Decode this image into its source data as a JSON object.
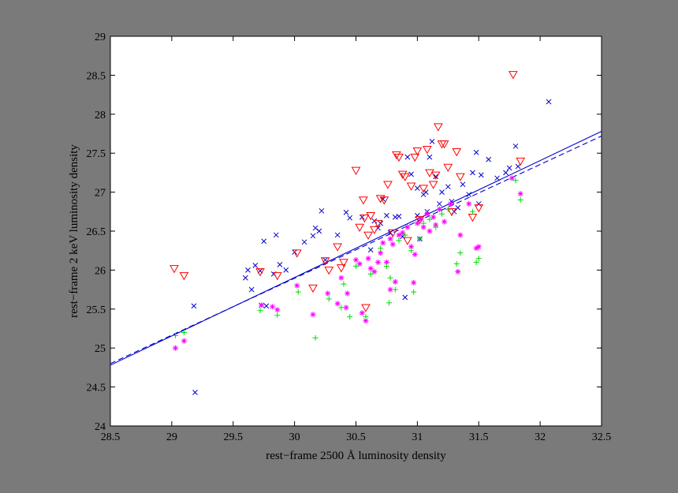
{
  "colors": {
    "background": "#7a7a7a",
    "plot_area": "#ffffff",
    "fit_solid": "#0000cc",
    "fit_dashed": "#0000cc",
    "series_x": "#0000cc",
    "series_triangle": "#ff0000",
    "series_star": "#ff00ff",
    "series_plus": "#00dd00"
  },
  "chart_data": {
    "type": "scatter",
    "title": "",
    "xlabel": "rest−frame 2500 Å luminosity density",
    "ylabel": "rest−frame 2 keV luminosity density",
    "xlim": [
      28.5,
      32.5
    ],
    "ylim": [
      24,
      29
    ],
    "xticks": [
      28.5,
      29,
      29.5,
      30,
      30.5,
      31,
      31.5,
      32,
      32.5
    ],
    "xtick_labels": [
      "28.5",
      "29",
      "29.5",
      "30",
      "30.5",
      "31",
      "31.5",
      "32",
      "32.5"
    ],
    "yticks": [
      24,
      24.5,
      25,
      25.5,
      26,
      26.5,
      27,
      27.5,
      28,
      28.5,
      29
    ],
    "ytick_labels": [
      "24",
      "24.5",
      "25",
      "25.5",
      "26",
      "26.5",
      "27",
      "27.5",
      "28",
      "28.5",
      "29"
    ],
    "grid": false,
    "legend": "none",
    "lines": [
      {
        "style": "solid",
        "points": [
          [
            28.5,
            24.78
          ],
          [
            32.5,
            27.78
          ]
        ]
      },
      {
        "style": "dashed",
        "points": [
          [
            28.5,
            24.8
          ],
          [
            32.5,
            27.72
          ]
        ]
      }
    ],
    "series": [
      {
        "marker": "x",
        "points": [
          [
            29.18,
            25.54
          ],
          [
            29.19,
            24.43
          ],
          [
            29.6,
            25.9
          ],
          [
            29.62,
            26.0
          ],
          [
            29.65,
            25.75
          ],
          [
            29.68,
            26.06
          ],
          [
            29.72,
            25.99
          ],
          [
            29.73,
            25.55
          ],
          [
            29.75,
            26.37
          ],
          [
            29.77,
            25.54
          ],
          [
            29.83,
            25.95
          ],
          [
            29.85,
            26.45
          ],
          [
            29.88,
            26.07
          ],
          [
            29.93,
            26.0
          ],
          [
            30.0,
            26.23
          ],
          [
            30.08,
            26.36
          ],
          [
            30.15,
            26.44
          ],
          [
            30.17,
            26.54
          ],
          [
            30.2,
            26.5
          ],
          [
            30.22,
            26.76
          ],
          [
            30.25,
            26.13
          ],
          [
            30.35,
            26.45
          ],
          [
            30.42,
            26.74
          ],
          [
            30.45,
            26.67
          ],
          [
            30.55,
            26.68
          ],
          [
            30.62,
            26.26
          ],
          [
            30.65,
            26.63
          ],
          [
            30.68,
            26.54
          ],
          [
            30.7,
            26.6
          ],
          [
            30.72,
            26.91
          ],
          [
            30.75,
            26.7
          ],
          [
            30.78,
            26.48
          ],
          [
            30.82,
            26.68
          ],
          [
            30.85,
            26.69
          ],
          [
            30.88,
            26.43
          ],
          [
            30.9,
            25.65
          ],
          [
            30.92,
            27.45
          ],
          [
            30.95,
            27.23
          ],
          [
            31.0,
            27.05
          ],
          [
            31.0,
            26.7
          ],
          [
            31.02,
            26.4
          ],
          [
            31.05,
            26.97
          ],
          [
            31.07,
            27.0
          ],
          [
            31.08,
            26.75
          ],
          [
            31.1,
            27.45
          ],
          [
            31.12,
            27.65
          ],
          [
            31.15,
            27.2
          ],
          [
            31.18,
            26.85
          ],
          [
            31.2,
            27.0
          ],
          [
            31.25,
            27.07
          ],
          [
            31.28,
            26.88
          ],
          [
            31.3,
            26.75
          ],
          [
            31.33,
            26.8
          ],
          [
            31.37,
            27.1
          ],
          [
            31.42,
            26.97
          ],
          [
            31.45,
            27.25
          ],
          [
            31.48,
            27.51
          ],
          [
            31.5,
            26.85
          ],
          [
            31.52,
            27.22
          ],
          [
            31.58,
            27.42
          ],
          [
            31.65,
            27.18
          ],
          [
            31.72,
            27.25
          ],
          [
            31.75,
            27.31
          ],
          [
            31.8,
            27.59
          ],
          [
            31.82,
            27.33
          ],
          [
            32.07,
            28.16
          ]
        ]
      },
      {
        "marker": "triangle-down",
        "points": [
          [
            29.02,
            26.02
          ],
          [
            29.1,
            25.93
          ],
          [
            29.72,
            25.98
          ],
          [
            29.86,
            25.93
          ],
          [
            30.02,
            26.22
          ],
          [
            30.15,
            25.77
          ],
          [
            30.25,
            26.12
          ],
          [
            30.28,
            26.0
          ],
          [
            30.35,
            26.3
          ],
          [
            30.38,
            26.03
          ],
          [
            30.4,
            26.1
          ],
          [
            30.5,
            27.28
          ],
          [
            30.53,
            26.55
          ],
          [
            30.56,
            26.9
          ],
          [
            30.57,
            26.67
          ],
          [
            30.58,
            25.52
          ],
          [
            30.6,
            26.45
          ],
          [
            30.62,
            26.7
          ],
          [
            30.65,
            26.52
          ],
          [
            30.68,
            26.6
          ],
          [
            30.7,
            26.92
          ],
          [
            30.73,
            26.9
          ],
          [
            30.76,
            27.1
          ],
          [
            30.8,
            26.48
          ],
          [
            30.83,
            27.48
          ],
          [
            30.85,
            27.45
          ],
          [
            30.88,
            27.23
          ],
          [
            30.9,
            27.2
          ],
          [
            30.92,
            26.38
          ],
          [
            30.95,
            27.08
          ],
          [
            30.98,
            27.45
          ],
          [
            31.0,
            27.53
          ],
          [
            31.02,
            26.65
          ],
          [
            31.05,
            27.05
          ],
          [
            31.08,
            27.55
          ],
          [
            31.1,
            27.25
          ],
          [
            31.13,
            27.1
          ],
          [
            31.15,
            27.22
          ],
          [
            31.17,
            27.84
          ],
          [
            31.2,
            27.62
          ],
          [
            31.22,
            27.62
          ],
          [
            31.25,
            27.32
          ],
          [
            31.28,
            26.75
          ],
          [
            31.32,
            27.52
          ],
          [
            31.35,
            27.2
          ],
          [
            31.45,
            26.68
          ],
          [
            31.5,
            26.8
          ],
          [
            31.78,
            28.51
          ],
          [
            31.84,
            27.4
          ]
        ]
      },
      {
        "marker": "asterisk",
        "points": [
          [
            29.03,
            25.0
          ],
          [
            29.1,
            25.09
          ],
          [
            29.73,
            25.55
          ],
          [
            29.82,
            25.53
          ],
          [
            29.86,
            25.49
          ],
          [
            30.02,
            25.8
          ],
          [
            30.15,
            25.43
          ],
          [
            30.27,
            25.7
          ],
          [
            30.35,
            25.57
          ],
          [
            30.38,
            25.9
          ],
          [
            30.42,
            25.52
          ],
          [
            30.43,
            25.7
          ],
          [
            30.5,
            26.13
          ],
          [
            30.53,
            26.08
          ],
          [
            30.55,
            25.45
          ],
          [
            30.58,
            25.35
          ],
          [
            30.6,
            26.15
          ],
          [
            30.62,
            26.02
          ],
          [
            30.65,
            25.98
          ],
          [
            30.68,
            26.1
          ],
          [
            30.7,
            26.22
          ],
          [
            30.72,
            26.35
          ],
          [
            30.75,
            26.1
          ],
          [
            30.78,
            26.4
          ],
          [
            30.78,
            25.75
          ],
          [
            30.8,
            26.33
          ],
          [
            30.82,
            25.85
          ],
          [
            30.85,
            26.45
          ],
          [
            30.88,
            26.48
          ],
          [
            30.92,
            26.55
          ],
          [
            30.95,
            26.3
          ],
          [
            30.97,
            25.84
          ],
          [
            30.98,
            26.2
          ],
          [
            31.0,
            26.6
          ],
          [
            31.03,
            26.65
          ],
          [
            31.05,
            26.55
          ],
          [
            31.08,
            26.72
          ],
          [
            31.1,
            26.5
          ],
          [
            31.13,
            26.68
          ],
          [
            31.15,
            26.58
          ],
          [
            31.18,
            26.78
          ],
          [
            31.22,
            26.62
          ],
          [
            31.27,
            26.85
          ],
          [
            31.33,
            25.98
          ],
          [
            31.35,
            26.45
          ],
          [
            31.42,
            26.85
          ],
          [
            31.48,
            26.28
          ],
          [
            31.5,
            26.3
          ],
          [
            31.77,
            27.18
          ],
          [
            31.84,
            26.98
          ]
        ]
      },
      {
        "marker": "plus",
        "points": [
          [
            29.03,
            25.16
          ],
          [
            29.1,
            25.2
          ],
          [
            29.72,
            25.48
          ],
          [
            29.86,
            25.42
          ],
          [
            30.03,
            25.72
          ],
          [
            30.17,
            25.13
          ],
          [
            30.28,
            25.63
          ],
          [
            30.38,
            25.52
          ],
          [
            30.4,
            25.82
          ],
          [
            30.45,
            25.4
          ],
          [
            30.5,
            26.05
          ],
          [
            30.58,
            25.4
          ],
          [
            30.62,
            25.95
          ],
          [
            30.7,
            26.28
          ],
          [
            30.75,
            26.05
          ],
          [
            30.77,
            25.58
          ],
          [
            30.78,
            25.9
          ],
          [
            30.82,
            25.75
          ],
          [
            30.85,
            26.38
          ],
          [
            30.9,
            26.45
          ],
          [
            30.95,
            26.25
          ],
          [
            30.97,
            25.72
          ],
          [
            31.02,
            26.4
          ],
          [
            31.05,
            26.6
          ],
          [
            31.1,
            26.65
          ],
          [
            31.15,
            26.55
          ],
          [
            31.2,
            26.72
          ],
          [
            31.25,
            26.78
          ],
          [
            31.32,
            26.08
          ],
          [
            31.35,
            26.22
          ],
          [
            31.45,
            26.75
          ],
          [
            31.48,
            26.1
          ],
          [
            31.5,
            26.15
          ],
          [
            31.8,
            27.15
          ],
          [
            31.84,
            26.9
          ]
        ]
      }
    ]
  }
}
